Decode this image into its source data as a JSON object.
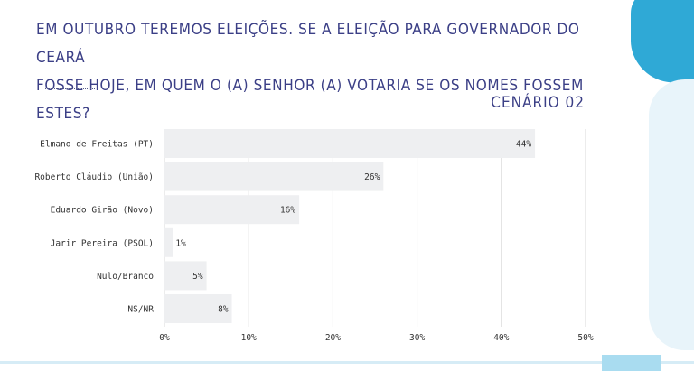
{
  "question": {
    "line1": "EM OUTUBRO TEREMOS ELEIÇÕES. SE A ELEIÇÃO PARA GOVERNADOR DO CEARÁ",
    "line2": "FOSSE HOJE, EM QUEM O (A) SENHOR (A) VOTARIA SE OS NOMES FOSSEM ESTES?"
  },
  "scenario_label": "CENÁRIO 02",
  "colors": {
    "bar": "#eeeff1",
    "grid": "#d9d9d9",
    "text": "#333333",
    "title": "#3b3f86"
  },
  "chart_data": {
    "type": "bar",
    "orientation": "horizontal",
    "categories": [
      "Elmano de Freitas (PT)",
      "Roberto Cláudio (União)",
      "Eduardo Girão (Novo)",
      "Jarir Pereira (PSOL)",
      "Nulo/Branco",
      "NS/NR"
    ],
    "values": [
      44,
      26,
      16,
      1,
      5,
      8
    ],
    "value_labels": [
      "44%",
      "26%",
      "16%",
      "1%",
      "5%",
      "8%"
    ],
    "xlim": [
      0,
      50
    ],
    "ticks": [
      0,
      10,
      20,
      30,
      40,
      50
    ],
    "tick_labels": [
      "0%",
      "10%",
      "20%",
      "30%",
      "40%",
      "50%"
    ],
    "grid": true,
    "title": "CENÁRIO 02",
    "xlabel": "",
    "ylabel": ""
  }
}
